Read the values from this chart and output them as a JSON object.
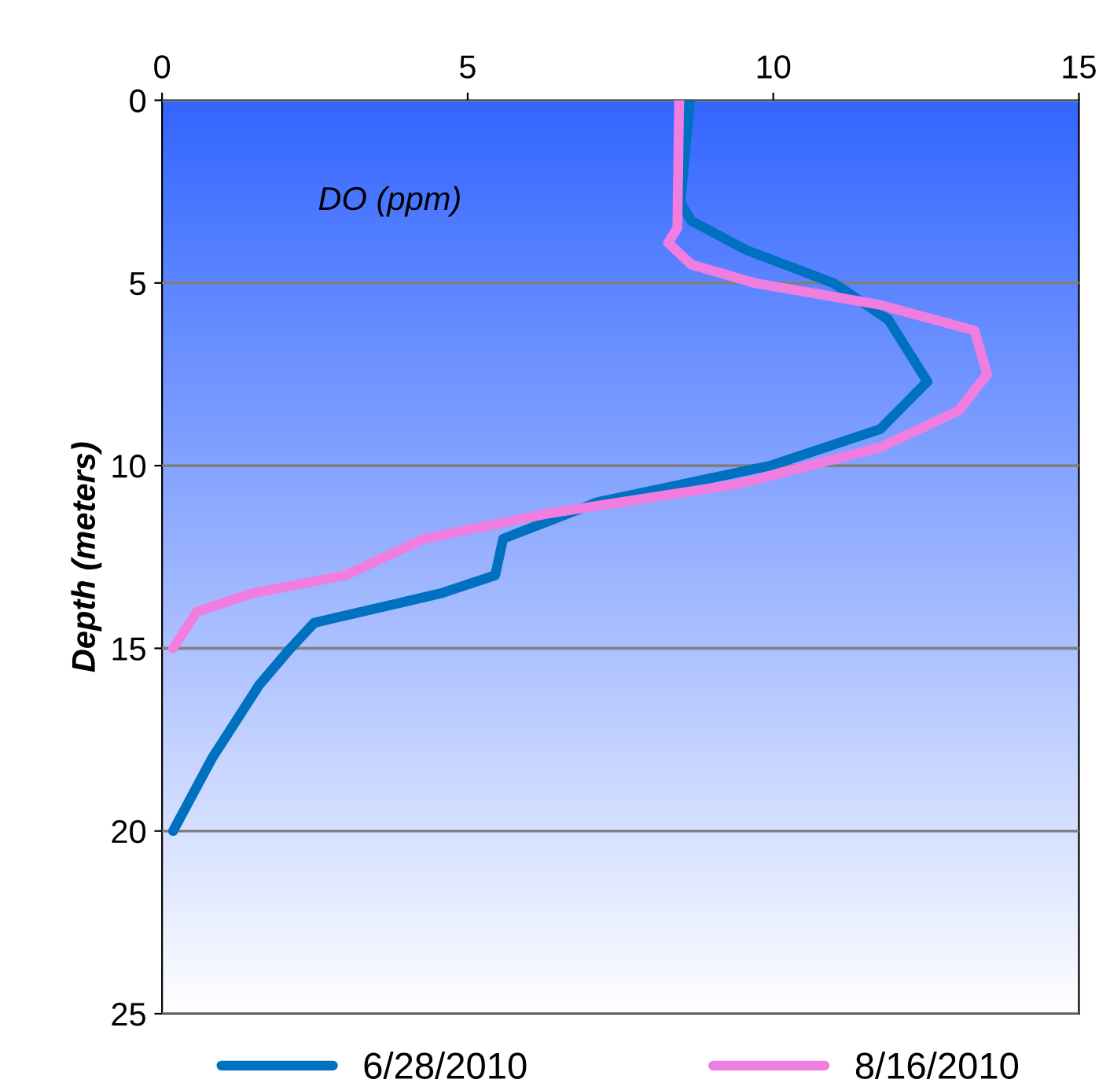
{
  "chart_data": {
    "type": "line",
    "ylabel": "Depth (meters)",
    "annotations": [
      "DO (ppm)"
    ],
    "xlim": [
      0,
      15
    ],
    "xticks": [
      0,
      5,
      10,
      15
    ],
    "ylim": [
      25,
      0
    ],
    "yticks": [
      0,
      5,
      10,
      15,
      20,
      25
    ],
    "grid": "y",
    "legend": "bottom",
    "line_style": "solid",
    "marker": "none",
    "series": [
      {
        "name": "6/28/2010",
        "color": "#0070c0",
        "x": [
          8.64,
          8.48,
          8.66,
          9.56,
          10.98,
          11.88,
          12.52,
          11.75,
          9.95,
          7.12,
          5.58,
          5.45,
          4.55,
          2.49,
          2.1,
          1.59,
          0.82,
          0.18
        ],
        "values": [
          0,
          2.8,
          3.3,
          4.1,
          5,
          6,
          7.7,
          9,
          10,
          11,
          12,
          13,
          13.5,
          14.3,
          15,
          16,
          18,
          20
        ]
      },
      {
        "name": "8/16/2010",
        "color": "#f07ee0",
        "x": [
          8.46,
          8.43,
          8.28,
          8.66,
          9.69,
          11.75,
          13.29,
          13.5,
          13.03,
          11.75,
          9.43,
          6.35,
          4.29,
          3.0,
          1.47,
          0.57,
          0.18
        ],
        "values": [
          0,
          3.5,
          3.9,
          4.5,
          5,
          5.6,
          6.3,
          7.5,
          8.5,
          9.5,
          10.5,
          11.3,
          12,
          13,
          13.5,
          14,
          15
        ]
      }
    ]
  }
}
